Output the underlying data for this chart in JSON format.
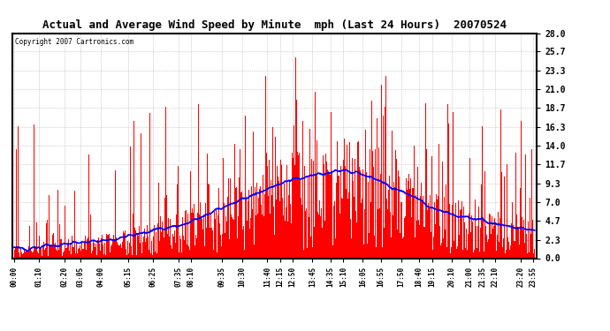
{
  "title": "Actual and Average Wind Speed by Minute  mph (Last 24 Hours)  20070524",
  "copyright": "Copyright 2007 Cartronics.com",
  "yticks": [
    0.0,
    2.3,
    4.7,
    7.0,
    9.3,
    11.7,
    14.0,
    16.3,
    18.7,
    21.0,
    23.3,
    25.7,
    28.0
  ],
  "ylim": [
    0.0,
    28.0
  ],
  "bg_color": "#ffffff",
  "plot_bg_color": "#ffffff",
  "bar_color": "#ff0000",
  "line_color": "#0000ff",
  "grid_color": "#aaaaaa",
  "x_tick_labels": [
    "00:00",
    "01:10",
    "02:20",
    "03:05",
    "04:00",
    "05:15",
    "06:25",
    "07:35",
    "08:10",
    "09:35",
    "10:30",
    "11:40",
    "12:15",
    "12:50",
    "13:45",
    "14:35",
    "15:10",
    "16:05",
    "16:55",
    "17:50",
    "18:40",
    "19:15",
    "20:10",
    "21:00",
    "21:35",
    "22:10",
    "23:20",
    "23:55"
  ]
}
